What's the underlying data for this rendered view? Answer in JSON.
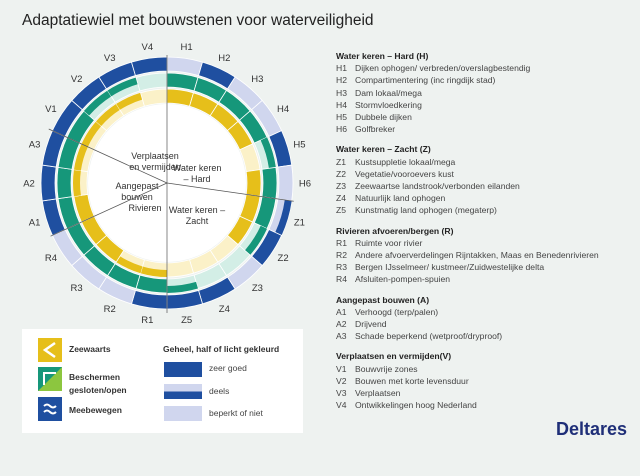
{
  "title": "Adaptatiewiel met bouwstenen voor waterveiligheid",
  "colors": {
    "blue": "#1f4fa0",
    "blue_light": "#d0d6ee",
    "green": "#16977a",
    "green_light": "#d3eee6",
    "yellow": "#e6bf1a",
    "yellow_light": "#fbf1c8"
  },
  "sections": [
    "Verplaatsen en vermijden",
    "Water keren – Hard",
    "Aangepast bouwen",
    "Rivieren",
    "Water keren – Zacht"
  ],
  "segments": [
    {
      "id": "H1",
      "levels": [
        "light",
        "full",
        "full"
      ]
    },
    {
      "id": "H2",
      "levels": [
        "full",
        "full",
        "full"
      ]
    },
    {
      "id": "H3",
      "levels": [
        "light",
        "full",
        "full"
      ]
    },
    {
      "id": "H4",
      "levels": [
        "light",
        "full",
        "full"
      ]
    },
    {
      "id": "H5",
      "levels": [
        "full",
        "half",
        "light"
      ]
    },
    {
      "id": "H6",
      "levels": [
        "light",
        "full",
        "full"
      ]
    },
    {
      "id": "Z1",
      "levels": [
        "half",
        "full",
        "full"
      ]
    },
    {
      "id": "Z2",
      "levels": [
        "full",
        "half",
        "full"
      ]
    },
    {
      "id": "Z3",
      "levels": [
        "light",
        "light",
        "light"
      ]
    },
    {
      "id": "Z4",
      "levels": [
        "full",
        "light",
        "light"
      ]
    },
    {
      "id": "Z5",
      "levels": [
        "full",
        "half",
        "light"
      ]
    },
    {
      "id": "R1",
      "levels": [
        "full",
        "full",
        "half"
      ]
    },
    {
      "id": "R2",
      "levels": [
        "light",
        "full",
        "half"
      ]
    },
    {
      "id": "R3",
      "levels": [
        "light",
        "full",
        "full"
      ]
    },
    {
      "id": "R4",
      "levels": [
        "light",
        "full",
        "full"
      ]
    },
    {
      "id": "A1",
      "levels": [
        "full",
        "full",
        "full"
      ]
    },
    {
      "id": "A2",
      "levels": [
        "full",
        "full",
        "half"
      ]
    },
    {
      "id": "A3",
      "levels": [
        "full",
        "full",
        "half"
      ]
    },
    {
      "id": "V1",
      "levels": [
        "full",
        "full",
        "half"
      ]
    },
    {
      "id": "V2",
      "levels": [
        "full",
        "half",
        "half"
      ]
    },
    {
      "id": "V3",
      "levels": [
        "full",
        "half",
        "half"
      ]
    },
    {
      "id": "V4",
      "levels": [
        "full",
        "light",
        "light"
      ]
    }
  ],
  "groups": [
    {
      "heading": "Water keren – Hard (H)",
      "items": [
        [
          "H1",
          "Dijken ophogen/ verbreden/overslagbestendig"
        ],
        [
          "H2",
          "Compartimentering (inc ringdijk stad)"
        ],
        [
          "H3",
          "Dam lokaal/mega"
        ],
        [
          "H4",
          "Stormvloedkering"
        ],
        [
          "H5",
          "Dubbele dijken"
        ],
        [
          "H6",
          "Golfbreker"
        ]
      ]
    },
    {
      "heading": "Water keren – Zacht (Z)",
      "items": [
        [
          "Z1",
          "Kustsuppletie lokaal/mega"
        ],
        [
          "Z2",
          "Vegetatie/vooroevers kust"
        ],
        [
          "Z3",
          "Zeewaartse landstrook/verbonden eilanden"
        ],
        [
          "Z4",
          "Natuurlijk land ophogen"
        ],
        [
          "Z5",
          "Kunstmatig land ophogen (megaterp)"
        ]
      ]
    },
    {
      "heading": "Rivieren afvoeren/bergen (R)",
      "items": [
        [
          "R1",
          "Ruimte voor rivier"
        ],
        [
          "R2",
          "Andere afvoerverdelingen Rijntakken, Maas en Benedenrivieren"
        ],
        [
          "R3",
          "Bergen IJsselmeer/ kustmeer/Zuidwestelijke delta"
        ],
        [
          "R4",
          "Afsluiten-pompen-spuien"
        ]
      ]
    },
    {
      "heading": "Aangepast bouwen (A)",
      "items": [
        [
          "A1",
          "Verhoogd (terp/palen)"
        ],
        [
          "A2",
          "Drijvend"
        ],
        [
          "A3",
          "Schade beperkend (wetproof/dryproof)"
        ]
      ]
    },
    {
      "heading": "Verplaatsen en vermijden(V)",
      "items": [
        [
          "V1",
          "Bouwvrije zones"
        ],
        [
          "V2",
          "Bouwen met korte levensduur"
        ],
        [
          "V3",
          "Verplaatsen"
        ],
        [
          "V4",
          "Ontwikkelingen hoog Nederland"
        ]
      ]
    }
  ],
  "legend": {
    "zeewaarts": "Zeewaarts",
    "beschermen1": "Beschermen",
    "beschermen2": "gesloten/open",
    "meebewegen": "Meebewegen",
    "scale_title": "Geheel, half of licht gekleurd",
    "full": "zeer goed",
    "half": "deels",
    "light": "beperkt of niet"
  },
  "logo": "Deltares"
}
